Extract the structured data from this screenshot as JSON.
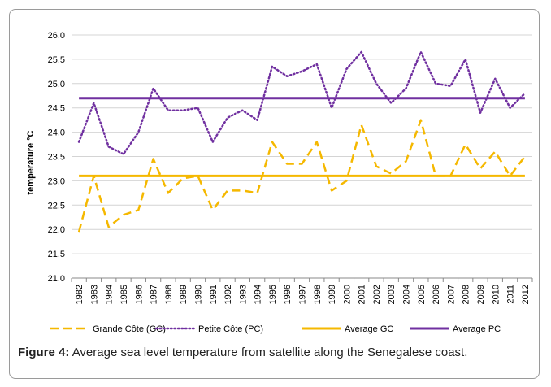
{
  "caption": {
    "label": "Figure 4:",
    "text": "Average sea level temperature from satellite along the Senegalese coast."
  },
  "chart_data": {
    "type": "line",
    "ylabel": "temperature °C",
    "xlabel": "",
    "ylim": [
      21.0,
      26.0
    ],
    "yticks": [
      "21.0",
      "21.5",
      "22.0",
      "22.5",
      "23.0",
      "23.5",
      "24.0",
      "24.5",
      "25.0",
      "25.5",
      "26.0"
    ],
    "categories": [
      "1982",
      "1983",
      "1984",
      "1985",
      "1986",
      "1987",
      "1988",
      "1989",
      "1990",
      "1991",
      "1992",
      "1993",
      "1994",
      "1995",
      "1996",
      "1997",
      "1998",
      "1999",
      "2000",
      "2001",
      "2002",
      "2003",
      "2004",
      "2005",
      "2006",
      "2007",
      "2008",
      "2009",
      "2010",
      "2011",
      "2012"
    ],
    "grid": "horizontal",
    "legend_position": "bottom",
    "series": [
      {
        "name": "Grande Côte (GC)",
        "color": "#f5b800",
        "style": "dashed",
        "values": [
          21.95,
          23.1,
          22.05,
          22.3,
          22.4,
          23.45,
          22.75,
          23.05,
          23.1,
          22.4,
          22.8,
          22.8,
          22.75,
          23.8,
          23.35,
          23.35,
          23.8,
          22.8,
          23.0,
          24.15,
          23.3,
          23.15,
          23.4,
          24.25,
          23.1,
          23.1,
          23.75,
          23.25,
          23.6,
          23.1,
          23.5
        ]
      },
      {
        "name": "Petite Côte (PC)",
        "color": "#7030a0",
        "style": "dotted",
        "values": [
          23.8,
          24.6,
          23.7,
          23.55,
          24.0,
          24.9,
          24.45,
          24.45,
          24.5,
          23.8,
          24.3,
          24.45,
          24.25,
          25.35,
          25.15,
          25.25,
          25.4,
          24.5,
          25.3,
          25.65,
          25.0,
          24.6,
          24.9,
          25.65,
          25.0,
          24.95,
          25.5,
          24.4,
          25.1,
          24.5,
          24.8
        ]
      },
      {
        "name": "Average GC",
        "color": "#f5b800",
        "style": "solid",
        "values": [
          23.1,
          23.1,
          23.1,
          23.1,
          23.1,
          23.1,
          23.1,
          23.1,
          23.1,
          23.1,
          23.1,
          23.1,
          23.1,
          23.1,
          23.1,
          23.1,
          23.1,
          23.1,
          23.1,
          23.1,
          23.1,
          23.1,
          23.1,
          23.1,
          23.1,
          23.1,
          23.1,
          23.1,
          23.1,
          23.1,
          23.1
        ]
      },
      {
        "name": "Average PC",
        "color": "#7030a0",
        "style": "solid",
        "values": [
          24.7,
          24.7,
          24.7,
          24.7,
          24.7,
          24.7,
          24.7,
          24.7,
          24.7,
          24.7,
          24.7,
          24.7,
          24.7,
          24.7,
          24.7,
          24.7,
          24.7,
          24.7,
          24.7,
          24.7,
          24.7,
          24.7,
          24.7,
          24.7,
          24.7,
          24.7,
          24.7,
          24.7,
          24.7,
          24.7,
          24.7
        ]
      }
    ]
  }
}
